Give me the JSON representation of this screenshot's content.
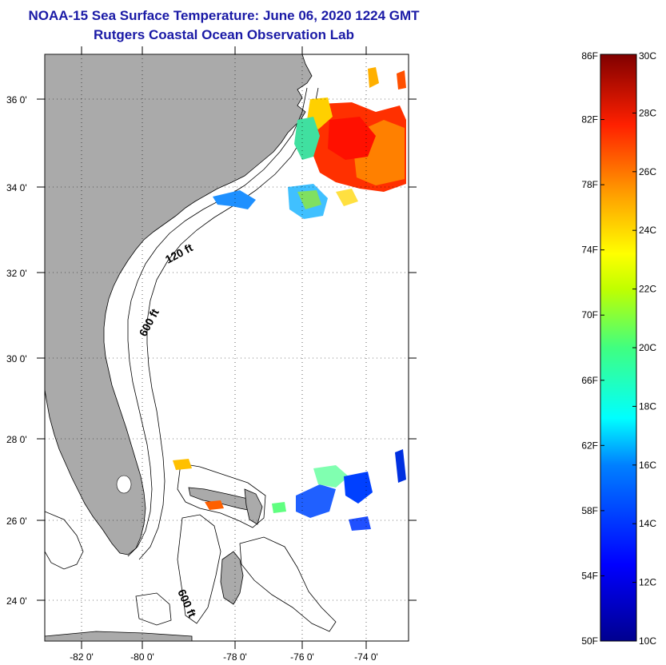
{
  "title": {
    "line1": "NOAA-15 Sea Surface Temperature:  June 06, 2020 1224 GMT",
    "line2": "Rutgers Coastal Ocean Observation Lab"
  },
  "map": {
    "lat_labels": [
      "36 0'",
      "34 0'",
      "32 0'",
      "30 0'",
      "28 0'",
      "26 0'",
      "24 0'"
    ],
    "lon_labels": [
      "-82 0'",
      "-80 0'",
      "-78 0'",
      "-76 0'",
      "-74 0'"
    ],
    "depth_labels": [
      "120 ft",
      "600 ft",
      "600 ft"
    ],
    "colors": {
      "land": "#aaaaaa",
      "ocean": "#ffffff",
      "title": "#1a1aa6"
    }
  },
  "colorbar": {
    "fahrenheit_labels": [
      "86F",
      "82F",
      "78F",
      "74F",
      "70F",
      "66F",
      "62F",
      "58F",
      "54F",
      "50F"
    ],
    "celsius_labels": [
      "30C",
      "28C",
      "26C",
      "24C",
      "22C",
      "20C",
      "18C",
      "16C",
      "14C",
      "12C",
      "10C"
    ]
  }
}
